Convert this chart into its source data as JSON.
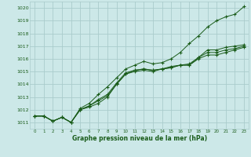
{
  "bg_color": "#cce8e8",
  "grid_color": "#aacccc",
  "line_color": "#1a5c1a",
  "marker_color": "#1a5c1a",
  "text_color": "#1a5c1a",
  "xlabel": "Graphe pression niveau de la mer (hPa)",
  "xlim": [
    -0.5,
    23.5
  ],
  "ylim": [
    1010.5,
    1020.5
  ],
  "xticks": [
    0,
    1,
    2,
    3,
    4,
    5,
    6,
    7,
    8,
    9,
    10,
    11,
    12,
    13,
    14,
    15,
    16,
    17,
    18,
    19,
    20,
    21,
    22,
    23
  ],
  "yticks": [
    1011,
    1012,
    1013,
    1014,
    1015,
    1016,
    1017,
    1018,
    1019,
    1020
  ],
  "series": [
    [
      1011.5,
      1011.5,
      1011.1,
      1011.4,
      1011.0,
      1012.0,
      1012.2,
      1012.5,
      1013.0,
      1014.0,
      1014.8,
      1015.0,
      1015.1,
      1015.0,
      1015.2,
      1015.3,
      1015.5,
      1015.5,
      1016.0,
      1016.3,
      1016.3,
      1016.5,
      1016.7,
      1016.9
    ],
    [
      1011.5,
      1011.5,
      1011.1,
      1011.4,
      1011.0,
      1012.0,
      1012.3,
      1012.7,
      1013.1,
      1014.0,
      1014.8,
      1015.1,
      1015.2,
      1015.1,
      1015.2,
      1015.3,
      1015.5,
      1015.5,
      1016.1,
      1016.5,
      1016.5,
      1016.7,
      1016.8,
      1017.0
    ],
    [
      1011.5,
      1011.5,
      1011.1,
      1011.4,
      1011.0,
      1012.0,
      1012.3,
      1012.8,
      1013.2,
      1014.1,
      1014.9,
      1015.1,
      1015.2,
      1015.1,
      1015.2,
      1015.4,
      1015.5,
      1015.6,
      1016.1,
      1016.7,
      1016.7,
      1016.9,
      1017.0,
      1017.1
    ],
    [
      1011.5,
      1011.5,
      1011.1,
      1011.4,
      1011.0,
      1012.1,
      1012.5,
      1013.2,
      1013.8,
      1014.5,
      1015.2,
      1015.5,
      1015.8,
      1015.6,
      1015.7,
      1016.0,
      1016.5,
      1017.2,
      1017.8,
      1018.5,
      1019.0,
      1019.3,
      1019.5,
      1020.1
    ]
  ]
}
